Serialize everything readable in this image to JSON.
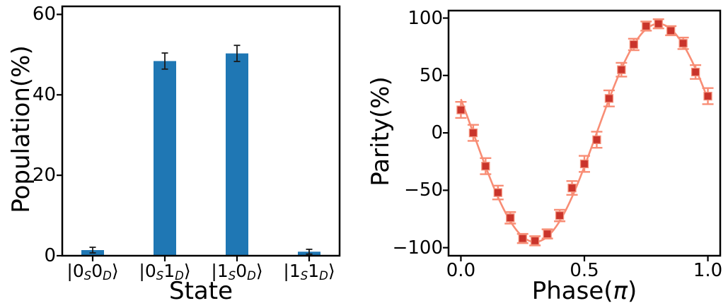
{
  "chart_data": [
    {
      "type": "bar",
      "title": "",
      "xlabel": "State",
      "ylabel": "Population(%)",
      "categories": [
        "|0_S0_D⟩",
        "|0_S1_D⟩",
        "|1_S0_D⟩",
        "|1_S1_D⟩"
      ],
      "categories_segments": [
        [
          {
            "t": "|0"
          },
          {
            "t": "S",
            "sub": true
          },
          {
            "t": "0"
          },
          {
            "t": "D",
            "sub": true
          },
          {
            "t": "⟩"
          }
        ],
        [
          {
            "t": "|0"
          },
          {
            "t": "S",
            "sub": true
          },
          {
            "t": "1"
          },
          {
            "t": "D",
            "sub": true
          },
          {
            "t": "⟩"
          }
        ],
        [
          {
            "t": "|1"
          },
          {
            "t": "S",
            "sub": true
          },
          {
            "t": "0"
          },
          {
            "t": "D",
            "sub": true
          },
          {
            "t": "⟩"
          }
        ],
        [
          {
            "t": "|1"
          },
          {
            "t": "S",
            "sub": true
          },
          {
            "t": "1"
          },
          {
            "t": "D",
            "sub": true
          },
          {
            "t": "⟩"
          }
        ]
      ],
      "values": [
        1.4,
        48.4,
        50.3,
        1.0
      ],
      "errors": [
        0.7,
        2.0,
        2.0,
        0.6
      ],
      "yticks": [
        0,
        20,
        40,
        60
      ],
      "ylim": [
        0,
        62
      ],
      "grid": false,
      "legend": null,
      "bar_color": "#1f77b4",
      "error_color": "#1a1a1a"
    },
    {
      "type": "line",
      "title": "",
      "xlabel": "Phase(π)",
      "xlabel_segments": [
        {
          "t": "Phase("
        },
        {
          "t": "π",
          "italic": true
        },
        {
          "t": ")"
        }
      ],
      "ylabel": "Parity(%)",
      "x": [
        0.0,
        0.05,
        0.1,
        0.15,
        0.2,
        0.25,
        0.3,
        0.35,
        0.4,
        0.45,
        0.5,
        0.55,
        0.6,
        0.65,
        0.7,
        0.75,
        0.8,
        0.85,
        0.9,
        0.95,
        1.0
      ],
      "y": [
        20,
        0,
        -29,
        -52,
        -74,
        -92,
        -94,
        -88,
        -72,
        -48,
        -27,
        -6,
        30,
        55,
        77,
        93,
        95,
        89,
        78,
        53,
        32
      ],
      "yerr": [
        7,
        7,
        7,
        6,
        5,
        4,
        4,
        4,
        5,
        6,
        7,
        7,
        7,
        6,
        5,
        4,
        4,
        4,
        5,
        6,
        7
      ],
      "fit": {
        "shape": "sine",
        "amplitude": 95,
        "period": 1.0,
        "phase_shift": 0.55,
        "offset": 0
      },
      "xticks": [
        0.0,
        0.5,
        1.0
      ],
      "yticks": [
        -100,
        -50,
        0,
        50,
        100
      ],
      "xlim": [
        -0.05,
        1.05
      ],
      "ylim": [
        -107,
        106.5
      ],
      "grid": false,
      "legend": null,
      "marker": "square",
      "marker_color": "#c9342b",
      "marker_edge_color": "#f4907a",
      "line_color": "#f88d75",
      "error_color": "#f88d75"
    }
  ]
}
